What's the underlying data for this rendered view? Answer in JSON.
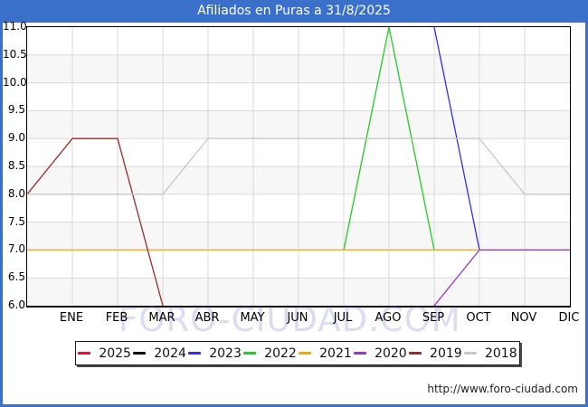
{
  "title": "Afiliados en Puras a 31/8/2025",
  "watermark": "FORO-CIUDAD.COM",
  "footer": {
    "url": "http://www.foro-ciudad.com"
  },
  "colors": {
    "titlebar": "#3a70c9",
    "page_border": "#3a70c9",
    "plot_frame": "#000000",
    "grid": "#d9d9d9",
    "band": "#f7f7f7",
    "band_alt": "#ffffff"
  },
  "chart_data": {
    "type": "line",
    "title": "Afiliados en Puras a 31/8/2025",
    "x_categories": [
      "ENE",
      "FEB",
      "MAR",
      "ABR",
      "MAY",
      "JUN",
      "JUL",
      "AGO",
      "SEP",
      "OCT",
      "NOV",
      "DIC"
    ],
    "x_note": "x=0 is the left axis edge; month gridlines ENE..DIC sit at x=1..12",
    "ylim": [
      6.0,
      11.0
    ],
    "ytick_step": 0.5,
    "grid": "on",
    "legend_position": "bottom",
    "series": [
      {
        "name": "2025",
        "color": "#e8112d",
        "points": [],
        "note": "no line visible in plot"
      },
      {
        "name": "2024",
        "color": "#111111",
        "points": [],
        "note": "no line visible in plot"
      },
      {
        "name": "2023",
        "color": "#2f2fe0",
        "points": [
          [
            9,
            11
          ],
          [
            10,
            7
          ]
        ]
      },
      {
        "name": "2022",
        "color": "#21cc21",
        "points": [
          [
            7,
            7
          ],
          [
            8,
            11
          ],
          [
            9,
            7
          ]
        ]
      },
      {
        "name": "2021",
        "color": "#ffa500",
        "points": [
          [
            0,
            7
          ],
          [
            12,
            7
          ]
        ]
      },
      {
        "name": "2020",
        "color": "#9b30d0",
        "points": [
          [
            9,
            6
          ],
          [
            10,
            7
          ],
          [
            12,
            7
          ]
        ]
      },
      {
        "name": "2019",
        "color": "#9e2b2b",
        "points": [
          [
            0,
            8
          ],
          [
            1,
            9
          ],
          [
            2,
            9
          ],
          [
            3,
            6
          ]
        ]
      },
      {
        "name": "2018",
        "color": "#c9c9c9",
        "points": [
          [
            0,
            8
          ],
          [
            3,
            8
          ],
          [
            4,
            9
          ],
          [
            10,
            9
          ],
          [
            11,
            8
          ],
          [
            12,
            8
          ]
        ]
      }
    ],
    "draw_order": [
      "2023",
      "2022",
      "2021",
      "2020",
      "2019",
      "2018"
    ]
  }
}
